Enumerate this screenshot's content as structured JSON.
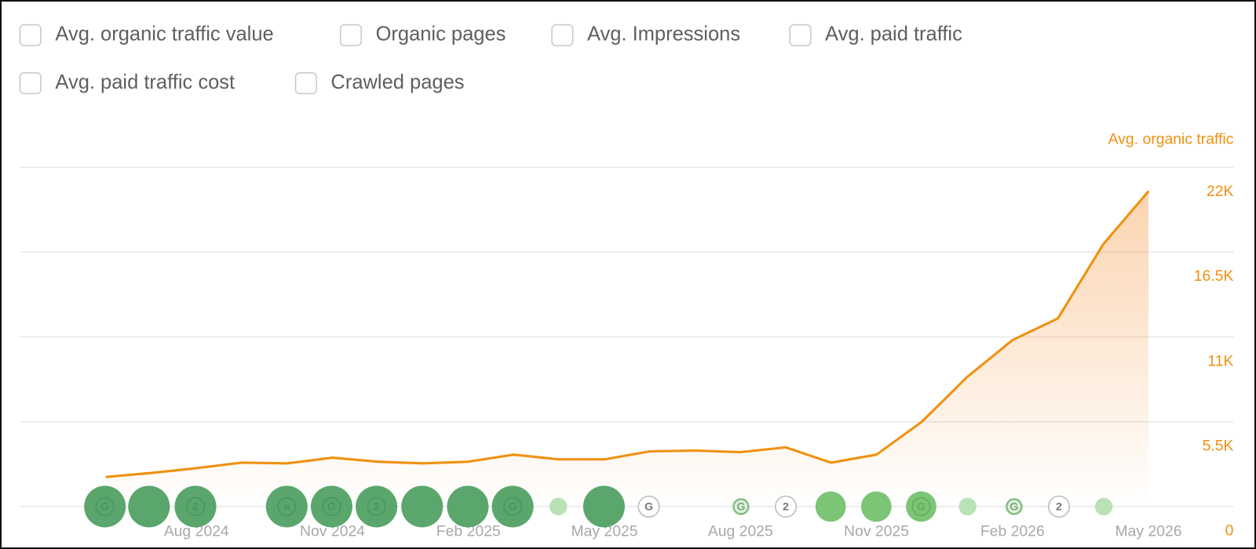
{
  "filters": [
    "Avg. organic traffic value",
    "Organic pages",
    "Avg. Impressions",
    "Avg. paid traffic",
    "Avg. paid traffic cost",
    "Crawled pages"
  ],
  "chart_data": {
    "type": "line",
    "y_axis_label": "Avg. organic traffic",
    "categories": [
      null,
      null,
      "Aug 2024",
      null,
      null,
      "Nov 2024",
      null,
      null,
      "Feb 2025",
      null,
      null,
      "May 2025",
      null,
      null,
      "Aug 2025",
      null,
      null,
      "Nov 2025",
      null,
      null,
      "Feb 2026",
      null,
      null,
      "May 2026"
    ],
    "series": [
      {
        "name": "Avg. organic traffic",
        "color": "#f0900f",
        "values": [
          1920,
          2180,
          2490,
          2850,
          2800,
          3170,
          2910,
          2800,
          2910,
          3370,
          3060,
          3060,
          3580,
          3630,
          3530,
          3840,
          2850,
          3370,
          5500,
          8400,
          10800,
          12200,
          17000,
          20450
        ]
      }
    ],
    "ylim": [
      0,
      22000
    ],
    "yticks": [
      0,
      {
        "value": 5500,
        "label": "5.5K"
      },
      {
        "value": 11000,
        "label": "11K"
      },
      {
        "value": 16500,
        "label": "16.5K"
      },
      {
        "value": 22000,
        "label": "22K"
      }
    ],
    "grid": true,
    "event_labels": [
      "G",
      null,
      "2",
      "a",
      "G",
      "2",
      null,
      null,
      "G",
      null,
      null,
      "G",
      "G",
      "2",
      null,
      null,
      "G",
      null,
      "G",
      "2",
      null
    ]
  }
}
